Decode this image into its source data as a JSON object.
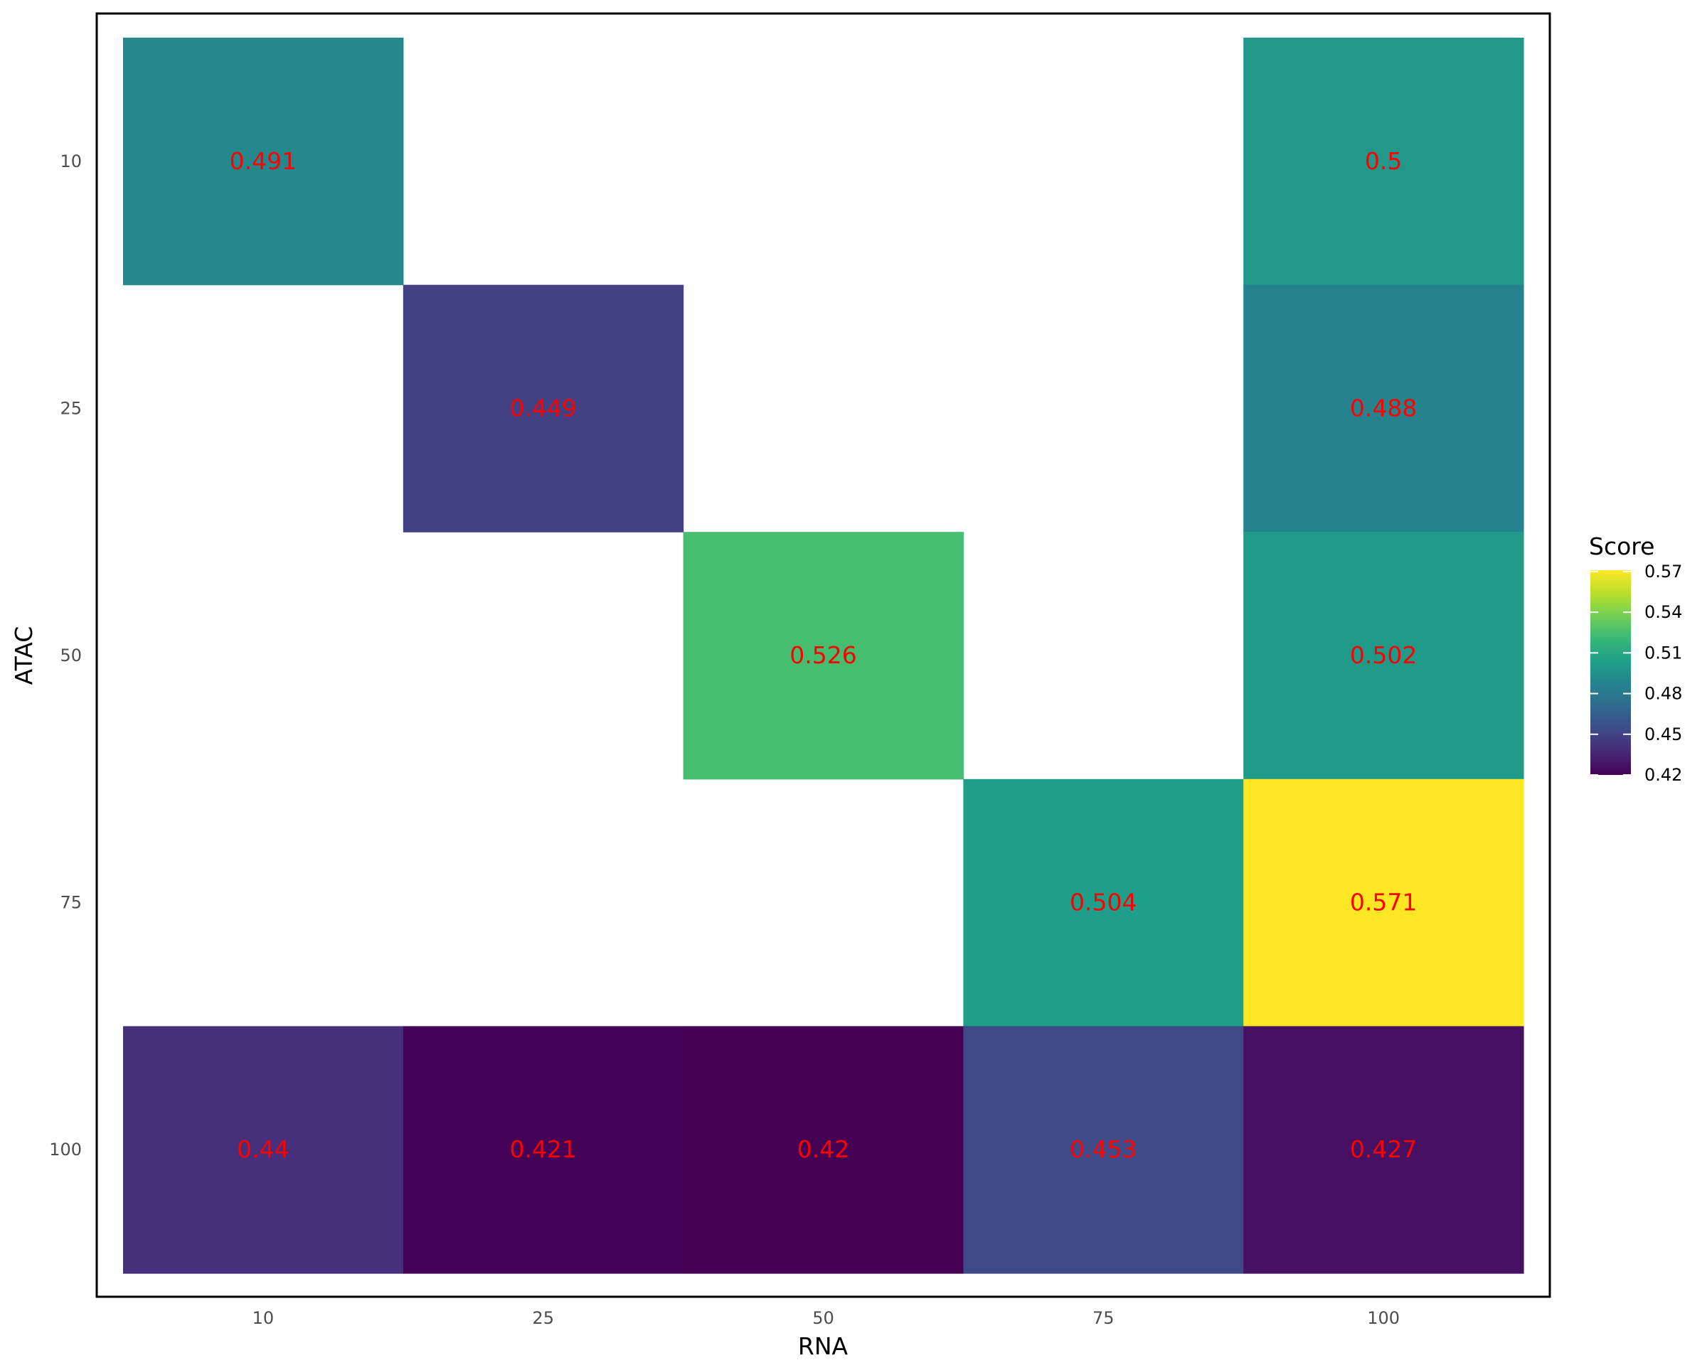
{
  "chart_data": {
    "type": "heatmap",
    "xlabel": "RNA",
    "ylabel": "ATAC",
    "x_categories": [
      "10",
      "25",
      "50",
      "75",
      "100"
    ],
    "y_categories": [
      "10",
      "25",
      "50",
      "75",
      "100"
    ],
    "cells": [
      {
        "x": "10",
        "y": "10",
        "value": 0.491,
        "label": "0.491"
      },
      {
        "x": "100",
        "y": "10",
        "value": 0.5,
        "label": "0.5"
      },
      {
        "x": "25",
        "y": "25",
        "value": 0.449,
        "label": "0.449"
      },
      {
        "x": "100",
        "y": "25",
        "value": 0.488,
        "label": "0.488"
      },
      {
        "x": "50",
        "y": "50",
        "value": 0.526,
        "label": "0.526"
      },
      {
        "x": "100",
        "y": "50",
        "value": 0.502,
        "label": "0.502"
      },
      {
        "x": "75",
        "y": "75",
        "value": 0.504,
        "label": "0.504"
      },
      {
        "x": "100",
        "y": "75",
        "value": 0.571,
        "label": "0.571"
      },
      {
        "x": "10",
        "y": "100",
        "value": 0.44,
        "label": "0.44"
      },
      {
        "x": "25",
        "y": "100",
        "value": 0.421,
        "label": "0.421"
      },
      {
        "x": "50",
        "y": "100",
        "value": 0.42,
        "label": "0.42"
      },
      {
        "x": "75",
        "y": "100",
        "value": 0.453,
        "label": "0.453"
      },
      {
        "x": "100",
        "y": "100",
        "value": 0.427,
        "label": "0.427"
      }
    ],
    "label_color": "#ff0000",
    "colorscale": "viridis",
    "legend": {
      "title": "Score",
      "min": 0.42,
      "max": 0.571,
      "ticks": [
        0.42,
        0.45,
        0.48,
        0.51,
        0.54,
        0.57
      ],
      "tick_labels": [
        "0.42",
        "0.45",
        "0.48",
        "0.51",
        "0.54",
        "0.57"
      ],
      "position": "right"
    },
    "grid": false,
    "panel_border": true
  }
}
